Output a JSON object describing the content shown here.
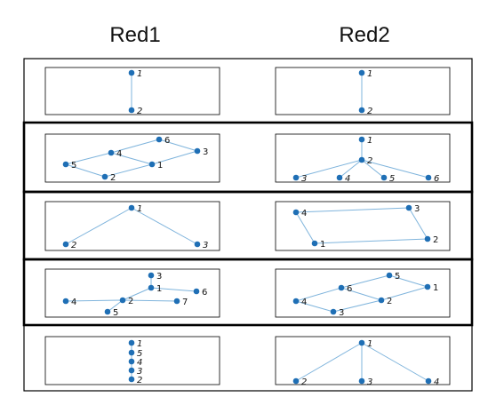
{
  "columns": [
    {
      "title": "Red1"
    },
    {
      "title": "Red2"
    }
  ],
  "rows": [
    {
      "left": {
        "nodes": [
          {
            "id": "1",
            "italic": true
          },
          {
            "id": "2",
            "italic": true
          }
        ],
        "edges": [
          [
            "1",
            "2"
          ]
        ]
      },
      "right": {
        "nodes": [
          {
            "id": "1",
            "italic": true
          },
          {
            "id": "2",
            "italic": true
          }
        ],
        "edges": [
          [
            "1",
            "2"
          ]
        ]
      }
    },
    {
      "left": {
        "nodes": [
          {
            "id": "6"
          },
          {
            "id": "4"
          },
          {
            "id": "3"
          },
          {
            "id": "5"
          },
          {
            "id": "1"
          },
          {
            "id": "2"
          }
        ],
        "edges": [
          [
            "5",
            "4"
          ],
          [
            "4",
            "6"
          ],
          [
            "6",
            "3"
          ],
          [
            "3",
            "1"
          ],
          [
            "4",
            "1"
          ],
          [
            "5",
            "2"
          ],
          [
            "2",
            "1"
          ]
        ]
      },
      "right": {
        "nodes": [
          {
            "id": "1",
            "italic": true
          },
          {
            "id": "2",
            "italic": true
          },
          {
            "id": "3",
            "italic": true
          },
          {
            "id": "4",
            "italic": true
          },
          {
            "id": "5",
            "italic": true
          },
          {
            "id": "6",
            "italic": true
          }
        ],
        "edges": [
          [
            "1",
            "2"
          ],
          [
            "2",
            "3"
          ],
          [
            "2",
            "4"
          ],
          [
            "2",
            "5"
          ],
          [
            "2",
            "6"
          ]
        ]
      }
    },
    {
      "left": {
        "nodes": [
          {
            "id": "1",
            "italic": true
          },
          {
            "id": "2",
            "italic": true
          },
          {
            "id": "3",
            "italic": true
          }
        ],
        "edges": [
          [
            "2",
            "1"
          ],
          [
            "1",
            "3"
          ]
        ]
      },
      "right": {
        "nodes": [
          {
            "id": "4"
          },
          {
            "id": "3"
          },
          {
            "id": "2"
          },
          {
            "id": "1"
          }
        ],
        "edges": [
          [
            "4",
            "3"
          ],
          [
            "3",
            "2"
          ],
          [
            "2",
            "1"
          ],
          [
            "1",
            "4"
          ]
        ]
      }
    },
    {
      "left": {
        "nodes": [
          {
            "id": "3"
          },
          {
            "id": "1"
          },
          {
            "id": "6"
          },
          {
            "id": "4"
          },
          {
            "id": "2"
          },
          {
            "id": "7"
          },
          {
            "id": "5"
          }
        ],
        "edges": [
          [
            "3",
            "1"
          ],
          [
            "1",
            "6"
          ],
          [
            "1",
            "2"
          ],
          [
            "4",
            "2"
          ],
          [
            "2",
            "7"
          ],
          [
            "2",
            "5"
          ]
        ]
      },
      "right": {
        "nodes": [
          {
            "id": "5"
          },
          {
            "id": "6"
          },
          {
            "id": "1"
          },
          {
            "id": "4"
          },
          {
            "id": "2"
          },
          {
            "id": "3"
          }
        ],
        "edges": [
          [
            "6",
            "5"
          ],
          [
            "5",
            "1"
          ],
          [
            "1",
            "2"
          ],
          [
            "2",
            "6"
          ],
          [
            "6",
            "4"
          ],
          [
            "4",
            "3"
          ],
          [
            "3",
            "2"
          ]
        ]
      }
    },
    {
      "left": {
        "nodes": [
          {
            "id": "1",
            "italic": true
          },
          {
            "id": "5",
            "italic": true
          },
          {
            "id": "4",
            "italic": true
          },
          {
            "id": "3",
            "italic": true
          },
          {
            "id": "2",
            "italic": true
          }
        ],
        "edges": [
          [
            "1",
            "5"
          ],
          [
            "5",
            "4"
          ],
          [
            "4",
            "3"
          ],
          [
            "3",
            "2"
          ]
        ]
      },
      "right": {
        "nodes": [
          {
            "id": "1",
            "italic": true
          },
          {
            "id": "2",
            "italic": true
          },
          {
            "id": "3",
            "italic": true
          },
          {
            "id": "4",
            "italic": true
          }
        ],
        "edges": [
          [
            "1",
            "2"
          ],
          [
            "1",
            "3"
          ],
          [
            "1",
            "4"
          ]
        ]
      }
    }
  ],
  "colors": {
    "node": "#1f6fb5",
    "edge": "#7fb4dc"
  }
}
